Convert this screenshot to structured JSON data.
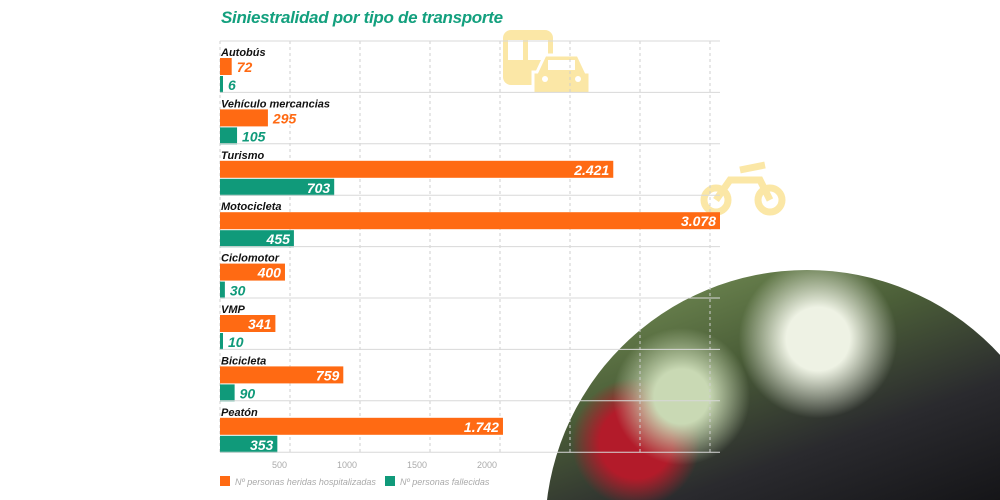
{
  "chart_data": {
    "type": "bar",
    "orientation": "horizontal",
    "title": "Siniestralidad por tipo de transporte",
    "categories": [
      "Autobús",
      "Vehículo mercancias",
      "Turismo",
      "Motocicleta",
      "Ciclomotor",
      "VMP",
      "Bicicleta",
      "Peatón"
    ],
    "series": [
      {
        "name": "Nº personas heridas hospitalizadas",
        "color": "#ff6a13",
        "values": [
          72,
          295,
          2421,
          3078,
          400,
          341,
          759,
          1742
        ],
        "labels": [
          "72",
          "295",
          "2.421",
          "3.078",
          "400",
          "341",
          "759",
          "1.742"
        ]
      },
      {
        "name": "Nº personas fallecidas",
        "color": "#109a7a",
        "values": [
          6,
          105,
          703,
          455,
          30,
          10,
          90,
          353
        ],
        "labels": [
          "6",
          "105",
          "703",
          "455",
          "30",
          "10",
          "90",
          "353"
        ]
      }
    ],
    "x_ticks": [
      "500",
      "1000",
      "1500",
      "2000"
    ],
    "xlim": [
      0,
      3078
    ],
    "grid": true,
    "legend": "bottom-left"
  },
  "decor": {
    "icons": [
      "bus-icon",
      "car-icon",
      "motorcycle-icon"
    ],
    "icon_color": "#fbe7a6"
  }
}
